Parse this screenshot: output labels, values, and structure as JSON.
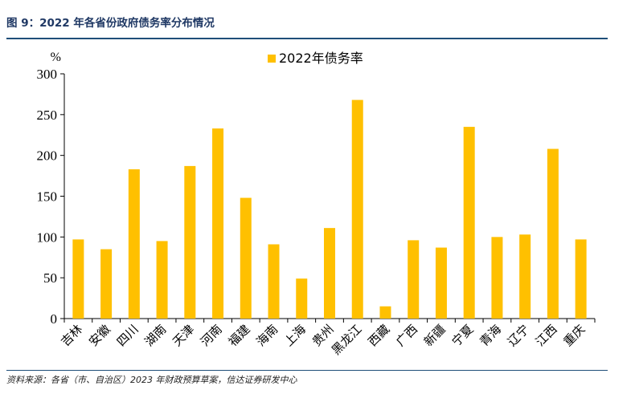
{
  "header": {
    "title": "图 9：2022 年各省份政府债务率分布情况"
  },
  "footer": {
    "source": "资料来源：各省（市、自治区）2023 年财政预算草案，信达证券研发中心"
  },
  "colors": {
    "bar": "#FFC000",
    "rule": "#1f4e79",
    "title": "#1f3864"
  },
  "chart_data": {
    "type": "bar",
    "unit": "%",
    "categories": [
      "吉林",
      "安徽",
      "四川",
      "湖南",
      "天津",
      "河南",
      "福建",
      "海南",
      "上海",
      "贵州",
      "黑龙江",
      "西藏",
      "广西",
      "新疆",
      "宁夏",
      "青海",
      "辽宁",
      "江西",
      "重庆"
    ],
    "series": [
      {
        "name": "2022年债务率",
        "values": [
          97,
          85,
          183,
          95,
          187,
          233,
          148,
          91,
          49,
          111,
          268,
          15,
          96,
          87,
          235,
          100,
          103,
          208,
          97
        ]
      }
    ],
    "ylim": [
      0,
      300
    ],
    "yticks": [
      0,
      50,
      100,
      150,
      200,
      250,
      300
    ],
    "legend_position": "top-center",
    "grid": false
  }
}
